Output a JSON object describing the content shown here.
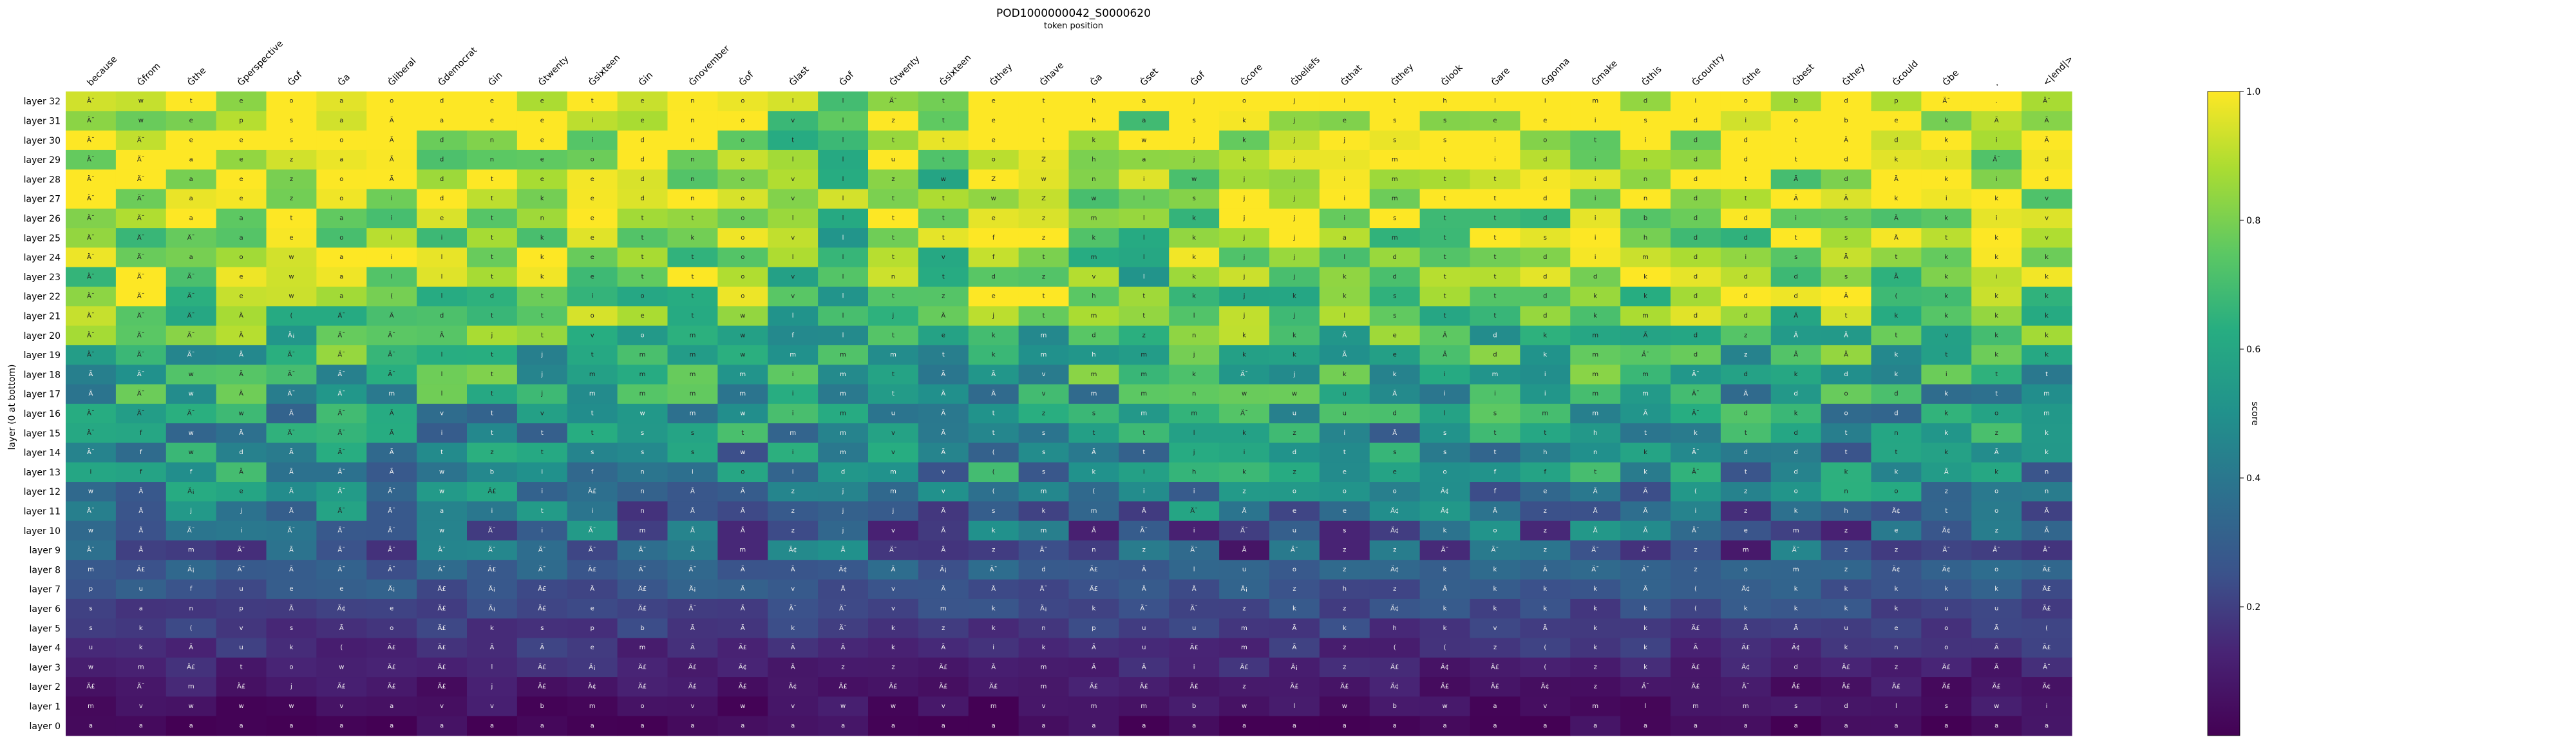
{
  "chart_data": {
    "type": "heatmap",
    "title": "POD1000000042_S0000620",
    "subtitle": "token position",
    "ylabel": "layer (0 at bottom)",
    "colorbar": {
      "label": "score",
      "ticks": [
        "0.2",
        "0.4",
        "0.6",
        "0.8",
        "1.0"
      ],
      "range": [
        0,
        1
      ],
      "colormap": "viridis"
    },
    "x_tokens": [
      "because",
      "Ġfrom",
      "Ġthe",
      "Ġperspective",
      "Ġof",
      "Ġa",
      "Ġliberal",
      "Ġdemocrat",
      "Ġin",
      "Ġtwenty",
      "Ġsixteen",
      "Ġin",
      "Ġnovember",
      "Ġof",
      "Ġlast",
      "Ġof",
      "Ġtwenty",
      "Ġsixteen",
      "Ġthey",
      "Ġhave",
      "Ġa",
      "Ġset",
      "Ġof",
      "Ġcore",
      "Ġbeliefs",
      "Ġthat",
      "Ġthey",
      "Ġlook",
      "Ġare",
      "Ġgonna",
      "Ġmake",
      "Ġthis",
      "Ġcountry",
      "Ġthe",
      "Ġbest",
      "Ġthey",
      "Ġcould",
      "Ġbe",
      ".",
      "<|end|>"
    ],
    "y_layers": [
      "layer 32",
      "layer 31",
      "layer 30",
      "layer 29",
      "layer 28",
      "layer 27",
      "layer 26",
      "layer 25",
      "layer 24",
      "layer 23",
      "layer 22",
      "layer 21",
      "layer 20",
      "layer 19",
      "layer 18",
      "layer 17",
      "layer 16",
      "layer 15",
      "layer 14",
      "layer 13",
      "layer 12",
      "layer 11",
      "layer 10",
      "layer 9",
      "layer 8",
      "layer 7",
      "layer 6",
      "layer 5",
      "layer 4",
      "layer 3",
      "layer 2",
      "layer 1",
      "layer 0"
    ],
    "cells": [
      [
        "Ä¯",
        "w",
        "t",
        "e",
        "o",
        "a",
        "o",
        "d",
        "e",
        "e",
        "t",
        "e",
        "n",
        "o",
        "l",
        "l",
        "Ä¯",
        "t",
        "e",
        "t",
        "h",
        "a",
        "j",
        "o",
        "j",
        "i",
        "t",
        "h",
        "l",
        "i",
        "m",
        "d",
        "i",
        "o",
        "b",
        "d",
        "p",
        "Ä¯",
        ".",
        "Ä¯"
      ],
      [
        "Ä¯",
        "w",
        "e",
        "p",
        "s",
        "a",
        "Ã",
        "a",
        "e",
        "e",
        "i",
        "e",
        "n",
        "o",
        "v",
        "l",
        "z",
        "t",
        "e",
        "t",
        "h",
        "a",
        "s",
        "k",
        "j",
        "e",
        "s",
        "s",
        "e",
        "e",
        "i",
        "s",
        "d",
        "i",
        "o",
        "b",
        "e",
        "k",
        "Ã",
        "Ã"
      ],
      [
        "Ä¯",
        "Ä¯",
        "e",
        "e",
        "s",
        "o",
        "Ã",
        "d",
        "n",
        "e",
        "i",
        "d",
        "n",
        "o",
        "t",
        "l",
        "t",
        "t",
        "e",
        "t",
        "k",
        "w",
        "j",
        "k",
        "j",
        "j",
        "s",
        "s",
        "i",
        "o",
        "t",
        "i",
        "d",
        "d",
        "t",
        "Ã",
        "d",
        "k",
        "i",
        "Ã"
      ],
      [
        "Ä¯",
        "Ä¯",
        "a",
        "e",
        "z",
        "a",
        "Ã",
        "d",
        "n",
        "e",
        "o",
        "d",
        "n",
        "o",
        "l",
        "l",
        "u",
        "t",
        "o",
        "Z",
        "h",
        "a",
        "j",
        "k",
        "j",
        "i",
        "m",
        "t",
        "i",
        "d",
        "i",
        "n",
        "d",
        "d",
        "t",
        "d",
        "k",
        "i",
        "Ä¯",
        "d"
      ],
      [
        "Ä¯",
        "Ä¯",
        "a",
        "e",
        "z",
        "o",
        "Ã",
        "d",
        "t",
        "e",
        "e",
        "d",
        "n",
        "o",
        "v",
        "l",
        "z",
        "w",
        "Z",
        "w",
        "n",
        "i",
        "w",
        "j",
        "j",
        "i",
        "m",
        "t",
        "t",
        "d",
        "i",
        "n",
        "d",
        "t",
        "Ã",
        "d",
        "Ã",
        "k",
        "i",
        "d"
      ],
      [
        "Ä¯",
        "Ä¯",
        "a",
        "e",
        "z",
        "o",
        "i",
        "d",
        "t",
        "k",
        "e",
        "d",
        "n",
        "o",
        "v",
        "l",
        "t",
        "t",
        "w",
        "Z",
        "w",
        "l",
        "s",
        "j",
        "j",
        "i",
        "m",
        "t",
        "t",
        "d",
        "i",
        "n",
        "d",
        "t",
        "Ã",
        "Ã",
        "k",
        "i",
        "k",
        "v"
      ],
      [
        "Ä¯",
        "Ä¯",
        "a",
        "a",
        "t",
        "a",
        "i",
        "e",
        "t",
        "n",
        "e",
        "t",
        "t",
        "o",
        "l",
        "l",
        "t",
        "t",
        "e",
        "z",
        "m",
        "l",
        "k",
        "j",
        "j",
        "i",
        "s",
        "t",
        "t",
        "d",
        "i",
        "b",
        "d",
        "d",
        "i",
        "s",
        "Ã",
        "k",
        "i",
        "v"
      ],
      [
        "Ä¯",
        "Ä¯",
        "Ä¯",
        "a",
        "e",
        "o",
        "i",
        "i",
        "t",
        "k",
        "e",
        "t",
        "k",
        "o",
        "v",
        "l",
        "t",
        "t",
        "f",
        "z",
        "k",
        "l",
        "k",
        "j",
        "j",
        "a",
        "m",
        "t",
        "t",
        "s",
        "i",
        "h",
        "d",
        "d",
        "t",
        "s",
        "Ã",
        "t",
        "k",
        "v"
      ],
      [
        "Ä¯",
        "Ä¯",
        "a",
        "o",
        "w",
        "a",
        "i",
        "l",
        "t",
        "k",
        "e",
        "t",
        "t",
        "o",
        "l",
        "l",
        "t",
        "v",
        "f",
        "t",
        "m",
        "l",
        "k",
        "j",
        "j",
        "l",
        "d",
        "t",
        "t",
        "d",
        "i",
        "m",
        "d",
        "i",
        "s",
        "Ã",
        "t",
        "k",
        "k",
        "k"
      ],
      [
        "Ä¯",
        "Ä¯",
        "Ä¯",
        "e",
        "w",
        "a",
        "l",
        "l",
        "t",
        "k",
        "e",
        "t",
        "t",
        "o",
        "v",
        "l",
        "n",
        "t",
        "d",
        "z",
        "v",
        "l",
        "k",
        "j",
        "j",
        "k",
        "d",
        "t",
        "t",
        "d",
        "d",
        "k",
        "d",
        "d",
        "d",
        "s",
        "Ã",
        "k",
        "i",
        "k"
      ],
      [
        "Ä¯",
        "Ä¯",
        "Ä¯",
        "e",
        "w",
        "a",
        "(",
        "l",
        "d",
        "t",
        "i",
        "o",
        "t",
        "o",
        "v",
        "l",
        "t",
        "z",
        "e",
        "t",
        "h",
        "t",
        "k",
        "j",
        "k",
        "k",
        "s",
        "t",
        "t",
        "d",
        "k",
        "k",
        "d",
        "d",
        "d",
        "Ã",
        "(",
        "k",
        "k",
        "k"
      ],
      [
        "Ä¯",
        "Ä¯",
        "Ä¯",
        "Ã",
        "(",
        "Ä¯",
        "Ã",
        "d",
        "t",
        "t",
        "o",
        "e",
        "t",
        "w",
        "l",
        "l",
        "j",
        "Ã",
        "j",
        "t",
        "m",
        "t",
        "l",
        "j",
        "j",
        "l",
        "s",
        "t",
        "t",
        "d",
        "k",
        "m",
        "d",
        "d",
        "Ã",
        "t",
        "k",
        "k",
        "k",
        "k"
      ],
      [
        "Ä¯",
        "Ä¯",
        "Ä¯",
        "Ã",
        "Ä¡",
        "Ä¯",
        "Ä¯",
        "Ã",
        "j",
        "t",
        "v",
        "o",
        "m",
        "w",
        "f",
        "l",
        "t",
        "e",
        "k",
        "m",
        "d",
        "z",
        "n",
        "k",
        "k",
        "Ã",
        "e",
        "Ã",
        "d",
        "k",
        "m",
        "Ã",
        "d",
        "z",
        "Ã",
        "Ã",
        "t",
        "v",
        "k",
        "k"
      ],
      [
        "Ä¯",
        "Ä¯",
        "Ä¯",
        "Ã",
        "Ä¯",
        "Ä¯",
        "Ä¯",
        "l",
        "t",
        "j",
        "t",
        "m",
        "m",
        "w",
        "m",
        "m",
        "m",
        "t",
        "k",
        "m",
        "h",
        "m",
        "j",
        "k",
        "k",
        "Ã",
        "e",
        "Ã",
        "d",
        "k",
        "m",
        "Ä¯",
        "d",
        "z",
        "Ã",
        "Ã",
        "k",
        "t",
        "k",
        "k"
      ],
      [
        "Ã",
        "Ä¯",
        "w",
        "Ã",
        "Ä¯",
        "Ä¯",
        "Ä¯",
        "l",
        "t",
        "j",
        "m",
        "m",
        "m",
        "m",
        "i",
        "m",
        "t",
        "Ã",
        "Ã",
        "v",
        "m",
        "m",
        "k",
        "Ä¯",
        "j",
        "k",
        "k",
        "i",
        "m",
        "i",
        "m",
        "m",
        "Ä¯",
        "d",
        "k",
        "d",
        "k",
        "i",
        "t",
        "t"
      ],
      [
        "Ã",
        "Ä¯",
        "w",
        "Ã",
        "Ä¯",
        "Ä¯",
        "m",
        "l",
        "t",
        "j",
        "m",
        "m",
        "m",
        "m",
        "i",
        "m",
        "t",
        "Ã",
        "Ã",
        "v",
        "m",
        "m",
        "n",
        "w",
        "w",
        "u",
        "Ã",
        "i",
        "i",
        "i",
        "m",
        "m",
        "Ä¯",
        "Ã",
        "d",
        "o",
        "d",
        "k",
        "t",
        "m"
      ],
      [
        "Ä¯",
        "Ä¯",
        "Ä¯",
        "w",
        "Ã",
        "Ä¯",
        "Ã",
        "v",
        "t",
        "v",
        "t",
        "w",
        "m",
        "w",
        "i",
        "m",
        "u",
        "Ã",
        "t",
        "z",
        "s",
        "m",
        "m",
        "Ä¯",
        "u",
        "u",
        "d",
        "l",
        "s",
        "m",
        "m",
        "Ã",
        "Ä¯",
        "d",
        "k",
        "o",
        "d",
        "k",
        "o",
        "m"
      ],
      [
        "Ä¯",
        "f",
        "w",
        "Ã",
        "Ä¯",
        "Ä¯",
        "Ã",
        "i",
        "t",
        "t",
        "t",
        "s",
        "s",
        "t",
        "m",
        "m",
        "v",
        "Ã",
        "t",
        "s",
        "t",
        "t",
        "l",
        "k",
        "z",
        "i",
        "Ã",
        "s",
        "t",
        "t",
        "h",
        "t",
        "k",
        "t",
        "d",
        "t",
        "n",
        "k",
        "z",
        "k"
      ],
      [
        "Ä¯",
        "f",
        "w",
        "d",
        "Ã",
        "Ä¯",
        "Ã",
        "t",
        "z",
        "t",
        "s",
        "s",
        "s",
        "w",
        "i",
        "m",
        "v",
        "Ã",
        "(",
        "s",
        "Ã",
        "t",
        "j",
        "i",
        "d",
        "t",
        "s",
        "s",
        "t",
        "h",
        "n",
        "k",
        "Ä¯",
        "d",
        "d",
        "t",
        "t",
        "k",
        "Ã",
        "k"
      ],
      [
        "i",
        "f",
        "f",
        "Ã",
        "Ã",
        "Ä¯",
        "Ã",
        "w",
        "b",
        "i",
        "f",
        "n",
        "i",
        "o",
        "i",
        "d",
        "m",
        "v",
        "(",
        "s",
        "k",
        "i",
        "h",
        "k",
        "z",
        "e",
        "e",
        "o",
        "f",
        "f",
        "t",
        "k",
        "Ä¯",
        "t",
        "d",
        "k",
        "k",
        "Ã",
        "k",
        "n"
      ],
      [
        "w",
        "Ã",
        "Ä¡",
        "e",
        "Ã",
        "Ä¯",
        "Ä¯",
        "w",
        "Ä£",
        "i",
        "Ä£",
        "n",
        "Ã",
        "Ã",
        "z",
        "j",
        "m",
        "v",
        "(",
        "m",
        "(",
        "i",
        "i",
        "z",
        "o",
        "o",
        "o",
        "Ä¢",
        "f",
        "e",
        "Ã",
        "Ã",
        "(",
        "z",
        "o",
        "n",
        "o",
        "z",
        "o",
        "n"
      ],
      [
        "Ä¯",
        "Ã",
        "j",
        "j",
        "Ã",
        "Ä¯",
        "Ä¯",
        "a",
        "i",
        "t",
        "i",
        "n",
        "Ã",
        "Ã",
        "z",
        "j",
        "j",
        "Ã",
        "s",
        "k",
        "m",
        "Ã",
        "Ä¯",
        "Ã",
        "e",
        "e",
        "Ä¢",
        "Ä¢",
        "Ã",
        "z",
        "Ã",
        "Ã",
        "i",
        "z",
        "k",
        "h",
        "Ä¢",
        "t",
        "o",
        "Ã"
      ],
      [
        "w",
        "Ã",
        "Ä¯",
        "i",
        "Ä¯",
        "Ä¯",
        "Ä¯",
        "w",
        "Ä¯",
        "i",
        "Ä¯",
        "m",
        "Ã",
        "Ã",
        "z",
        "j",
        "v",
        "Ã",
        "k",
        "m",
        "Ã",
        "Ä¯",
        "i",
        "Ä¯",
        "u",
        "s",
        "Ä¢",
        "k",
        "o",
        "z",
        "Ã",
        "Ã",
        "Ä¯",
        "e",
        "m",
        "z",
        "e",
        "Ä¢",
        "z",
        "Ã"
      ],
      [
        "Ä¯",
        "Ã",
        "m",
        "Ä¯",
        "Ã",
        "Ä¯",
        "Ä¯",
        "Ä¯",
        "Ä¯",
        "Ä¯",
        "Ä¯",
        "Ä¯",
        "Ã",
        "m",
        "Ä¢",
        "Ã",
        "Ä¯",
        "Ã",
        "z",
        "Ä¯",
        "n",
        "z",
        "Ä¯",
        "Ã",
        "Ä¯",
        "z",
        "z",
        "Ä¯",
        "Ä¯",
        "z",
        "Ä¯",
        "Ä¯",
        "z",
        "m",
        "Ä¯",
        "z",
        "z",
        "Ä¯",
        "Ä¯",
        "Ä¯"
      ],
      [
        "m",
        "Ä£",
        "Ä¡",
        "Ä¯",
        "Ã",
        "Ä¯",
        "Ä¯",
        "Ä¯",
        "Ä£",
        "Ä¯",
        "Ä£",
        "Ä¯",
        "Ä¯",
        "Ã",
        "Ã",
        "Ä¢",
        "Ã",
        "Ä¡",
        "Ä¯",
        "d",
        "Ä£",
        "Ã",
        "l",
        "u",
        "o",
        "z",
        "Ä¢",
        "k",
        "k",
        "Ã",
        "Ä¯",
        "Ä¯",
        "z",
        "o",
        "m",
        "z",
        "Ä¢",
        "Ä¢",
        "o",
        "Ä£"
      ],
      [
        "p",
        "u",
        "f",
        "u",
        "e",
        "e",
        "Ä¡",
        "Ä£",
        "Ä¡",
        "Ä£",
        "Ã",
        "Ä£",
        "Ä¡",
        "Ã",
        "v",
        "Ã",
        "v",
        "Ã",
        "Ã",
        "Ä¯",
        "Ä£",
        "Ã",
        "Ã",
        "Ä¡",
        "z",
        "h",
        "z",
        "Ã",
        "k",
        "k",
        "k",
        "Ã",
        "(",
        "Ä¢",
        "k",
        "k",
        "k",
        "k",
        "k",
        "Ä£"
      ],
      [
        "s",
        "a",
        "n",
        "p",
        "Ã",
        "Ä¢",
        "e",
        "Ä£",
        "Ä¡",
        "Ä£",
        "e",
        "Ä£",
        "Ä¯",
        "Ã",
        "Ä¯",
        "Ä¯",
        "v",
        "m",
        "k",
        "Ä¡",
        "k",
        "Ä¯",
        "Ä¯",
        "z",
        "k",
        "z",
        "Ä¢",
        "k",
        "k",
        "k",
        "k",
        "k",
        "(",
        "k",
        "k",
        "k",
        "k",
        "u",
        "u",
        "Ä£"
      ],
      [
        "s",
        "k",
        "(",
        "v",
        "s",
        "Ã",
        "o",
        "Ä£",
        "k",
        "s",
        "p",
        "b",
        "Ã",
        "Ã",
        "k",
        "Ä¯",
        "k",
        "z",
        "k",
        "n",
        "p",
        "u",
        "u",
        "m",
        "Ã",
        "k",
        "h",
        "k",
        "v",
        "Ã",
        "k",
        "k",
        "Ä£",
        "Ã",
        "Ã",
        "u",
        "e",
        "o",
        "Ã",
        "("
      ],
      [
        "u",
        "k",
        "Ã",
        "u",
        "k",
        "(",
        "Ä£",
        "Ä£",
        "Ã",
        "Ã",
        "e",
        "m",
        "Ã",
        "Ä£",
        "Ã",
        "Ã",
        "k",
        "Ã",
        "i",
        "k",
        "Ã",
        "u",
        "Ä£",
        "m",
        "Ã",
        "z",
        "(",
        "(",
        "z",
        "(",
        "k",
        "k",
        "Ã",
        "Ä£",
        "Ä¢",
        "k",
        "n",
        "o",
        "Ã",
        "Ä£"
      ],
      [
        "w",
        "m",
        "Ä£",
        "t",
        "o",
        "w",
        "Ä£",
        "Ä£",
        "l",
        "Ä£",
        "Ä¡",
        "Ä£",
        "Ä£",
        "Ä¢",
        "Ã",
        "z",
        "z",
        "Ä£",
        "Ã",
        "m",
        "Ã",
        "Ã",
        "i",
        "Ä£",
        "Ä¡",
        "z",
        "Ä£",
        "Ä¢",
        "Ä£",
        "(",
        "z",
        "k",
        "Ä£",
        "Ä¢",
        "d",
        "Ä£",
        "z",
        "Ä£",
        "Ã",
        "Ä¯"
      ],
      [
        "Ä£",
        "Ä¯",
        "m",
        "Ä£",
        "j",
        "Ä£",
        "Ä£",
        "Ä£",
        "j",
        "Ä£",
        "Ä¢",
        "Ä£",
        "Ä£",
        "Ä£",
        "Ä¢",
        "Ä£",
        "Ä£",
        "Ä£",
        "Ä£",
        "m",
        "Ä£",
        "Ä£",
        "Ä£",
        "z",
        "Ä£",
        "Ä£",
        "Ä¢",
        "Ä£",
        "Ä£",
        "Ä¢",
        "z",
        "Ä¯",
        "Ä£",
        "Ä¯",
        "Ä£",
        "Ä£",
        "Ä£",
        "Ä£",
        "Ä£",
        "Ä¢"
      ],
      [
        "m",
        "v",
        "w",
        "w",
        "w",
        "v",
        "a",
        "v",
        "v",
        "b",
        "m",
        "o",
        "v",
        "w",
        "v",
        "w",
        "w",
        "v",
        "m",
        "v",
        "m",
        "m",
        "b",
        "w",
        "l",
        "w",
        "b",
        "w",
        "a",
        "v",
        "m",
        "l",
        "m",
        "m",
        "s",
        "d",
        "l",
        "s",
        "w",
        "i"
      ],
      [
        "a",
        "a",
        "a",
        "a",
        "a",
        "a",
        "a",
        "a",
        "a",
        "a",
        "a",
        "a",
        "a",
        "a",
        "a",
        "a",
        "a",
        "a",
        "a",
        "a",
        "a",
        "a",
        "a",
        "a",
        "a",
        "a",
        "a",
        "a",
        "a",
        "a",
        "a",
        "a",
        "a",
        "a",
        "a",
        "a",
        "a",
        "a",
        "a",
        "a"
      ]
    ]
  }
}
